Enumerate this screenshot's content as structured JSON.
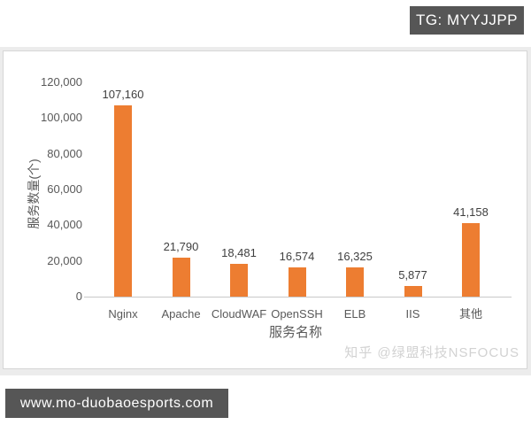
{
  "overlays": {
    "tg_badge": "TG: MYYJJPP",
    "site_badge": "www.mo-duobaoesports.com"
  },
  "watermark": "知乎 @绿盟科技NSFOCUS",
  "chart_data": {
    "type": "bar",
    "title": "",
    "categories": [
      "Nginx",
      "Apache",
      "CloudWAF",
      "OpenSSH",
      "ELB",
      "IIS",
      "其他"
    ],
    "values": [
      107160,
      21790,
      18481,
      16574,
      16325,
      5877,
      41158
    ],
    "data_labels": [
      "107,160",
      "21,790",
      "18,481",
      "16,574",
      "16,325",
      "5,877",
      "41,158"
    ],
    "xlabel": "服务名称",
    "ylabel": "服务数量(个)",
    "ylim": [
      0,
      120000
    ],
    "ytick_step": 20000,
    "ytick_labels": [
      "0",
      "20,000",
      "40,000",
      "60,000",
      "80,000",
      "100,000",
      "120,000"
    ],
    "grid": false,
    "legend": "none",
    "bar_color": "#ED7D31"
  },
  "colors": {
    "badge_bg": "#565656",
    "badge_text": "#ffffff",
    "bar_fill": "#ED7D31",
    "axis_text": "#595959",
    "value_label_text": "#3f3f3f",
    "axis_line": "#c8c8c8",
    "watermark_text": "#d2d2d2",
    "panel_border": "#d6d6d6",
    "page_band": "#ececec",
    "page_bg": "#ffffff"
  }
}
